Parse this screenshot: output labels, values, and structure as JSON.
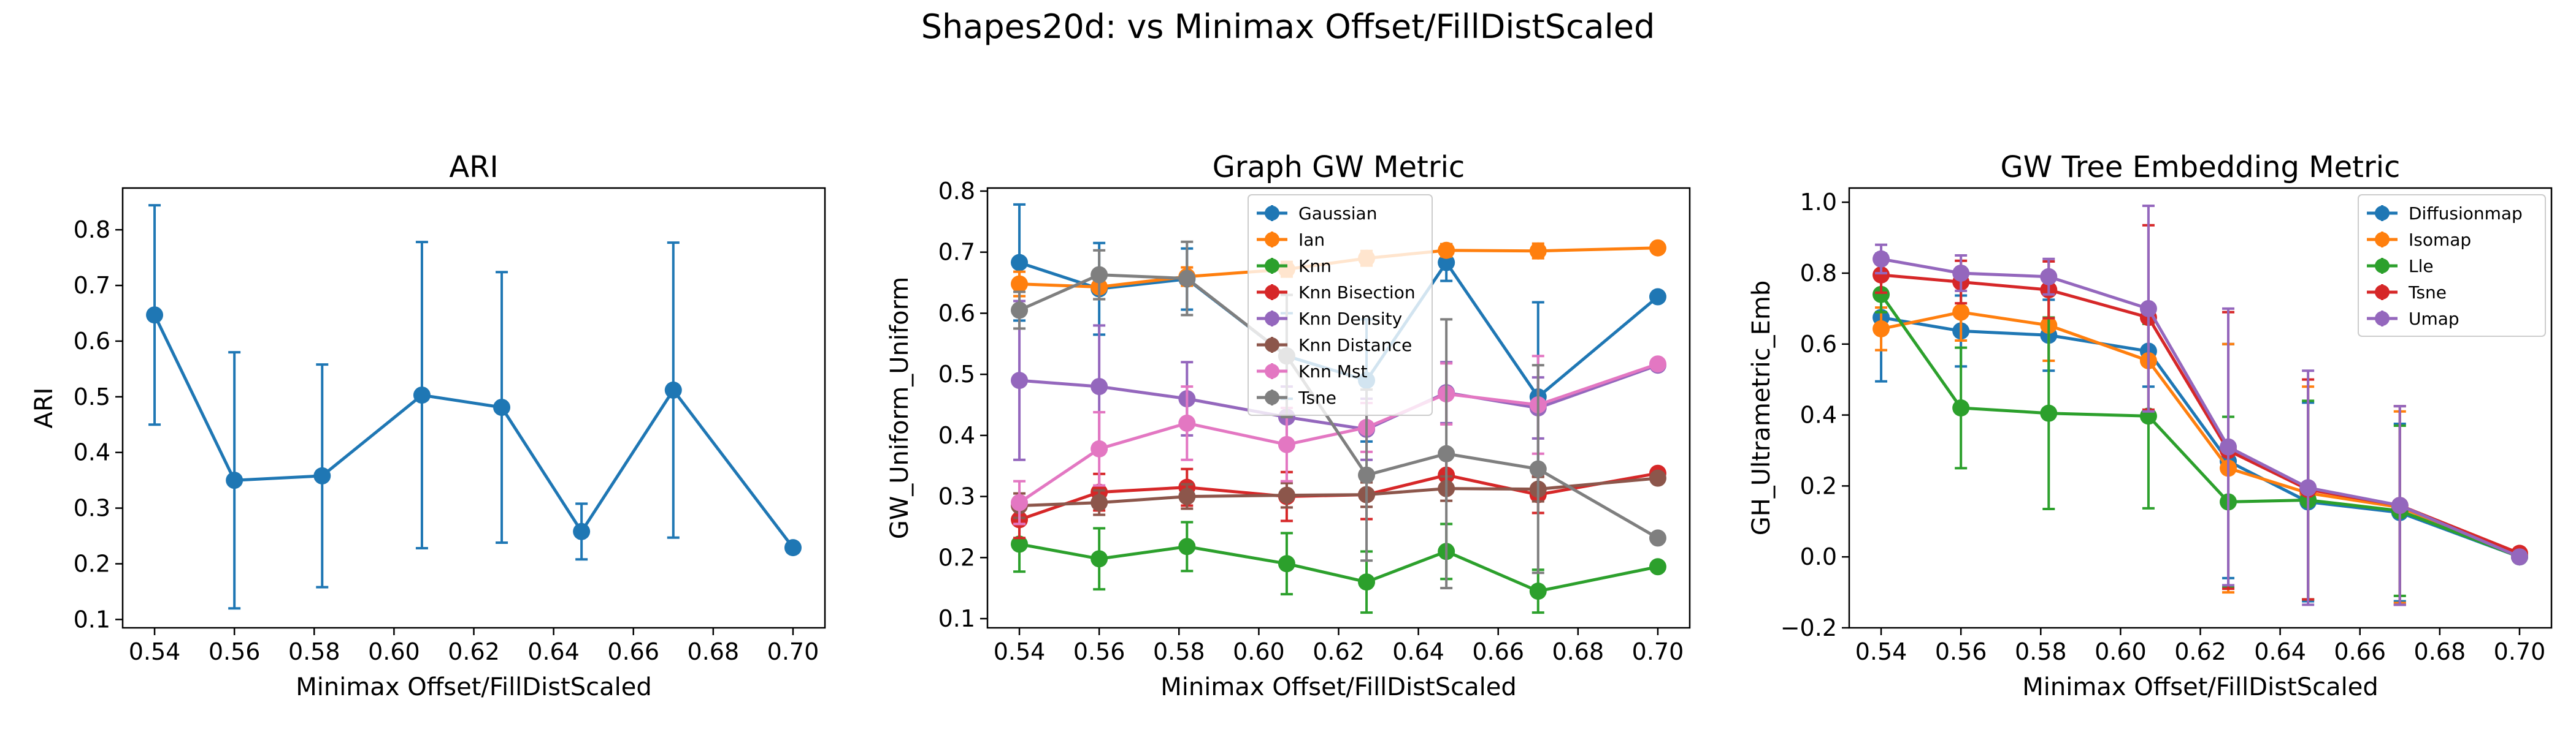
{
  "suptitle": "Shapes20d: vs Minimax Offset/FillDistScaled",
  "chart_data": [
    {
      "type": "line",
      "title": "ARI",
      "xlabel": "Minimax Offset/FillDistScaled",
      "ylabel": "ARI",
      "xlim": [
        0.532,
        0.708
      ],
      "ylim": [
        0.085,
        0.875
      ],
      "xticks": [
        "0.54",
        "0.56",
        "0.58",
        "0.60",
        "0.62",
        "0.64",
        "0.66",
        "0.68",
        "0.70"
      ],
      "yticks": [
        "0.1",
        "0.2",
        "0.3",
        "0.4",
        "0.5",
        "0.6",
        "0.7",
        "0.8"
      ],
      "x": [
        0.54,
        0.56,
        0.582,
        0.607,
        0.627,
        0.647,
        0.67,
        0.7
      ],
      "series": [
        {
          "color": "#1f77b4",
          "values": [
            0.647,
            0.35,
            0.358,
            0.503,
            0.481,
            0.258,
            0.512,
            0.229
          ],
          "errors": [
            0.197,
            0.23,
            0.2,
            0.275,
            0.243,
            0.05,
            0.265,
            0.0
          ]
        }
      ]
    },
    {
      "type": "line",
      "title": "Graph GW Metric",
      "xlabel": "Minimax Offset/FillDistScaled",
      "ylabel": "GW_Uniform_Uniform",
      "xlim": [
        0.532,
        0.708
      ],
      "ylim": [
        0.085,
        0.805
      ],
      "xticks": [
        "0.54",
        "0.56",
        "0.58",
        "0.60",
        "0.62",
        "0.64",
        "0.66",
        "0.68",
        "0.70"
      ],
      "yticks": [
        "0.1",
        "0.2",
        "0.3",
        "0.4",
        "0.5",
        "0.6",
        "0.7",
        "0.8"
      ],
      "legend_position": "upper center",
      "x": [
        0.54,
        0.56,
        0.582,
        0.607,
        0.627,
        0.647,
        0.67,
        0.7
      ],
      "series": [
        {
          "name": "Gaussian",
          "color": "#1f77b4",
          "values": [
            0.683,
            0.64,
            0.656,
            0.53,
            0.49,
            0.683,
            0.463,
            0.627
          ],
          "errors": [
            0.095,
            0.075,
            0.05,
            0.07,
            0.1,
            0.03,
            0.155,
            0.0
          ]
        },
        {
          "name": "Ian",
          "color": "#ff7f0e",
          "values": [
            0.648,
            0.643,
            0.66,
            0.672,
            0.69,
            0.703,
            0.702,
            0.707
          ],
          "errors": [
            0.02,
            0.02,
            0.015,
            0.012,
            0.012,
            0.01,
            0.012,
            0.0
          ]
        },
        {
          "name": "Knn",
          "color": "#2ca02c",
          "values": [
            0.222,
            0.198,
            0.218,
            0.19,
            0.16,
            0.21,
            0.145,
            0.185
          ],
          "errors": [
            0.045,
            0.05,
            0.04,
            0.05,
            0.05,
            0.045,
            0.035,
            0.0
          ]
        },
        {
          "name": "Knn Bisection",
          "color": "#d62728",
          "values": [
            0.262,
            0.307,
            0.315,
            0.3,
            0.303,
            0.335,
            0.303,
            0.338
          ],
          "errors": [
            0.03,
            0.03,
            0.03,
            0.04,
            0.04,
            0.03,
            0.03,
            0.0
          ]
        },
        {
          "name": "Knn Density",
          "color": "#9467bd",
          "values": [
            0.49,
            0.48,
            0.46,
            0.43,
            0.41,
            0.47,
            0.445,
            0.515
          ],
          "errors": [
            0.13,
            0.1,
            0.06,
            0.05,
            0.05,
            0.05,
            0.05,
            0.0
          ]
        },
        {
          "name": "Knn Distance",
          "color": "#8c564b",
          "values": [
            0.285,
            0.29,
            0.3,
            0.302,
            0.303,
            0.313,
            0.312,
            0.33
          ],
          "errors": [
            0.02,
            0.02,
            0.02,
            0.02,
            0.02,
            0.02,
            0.02,
            0.0
          ]
        },
        {
          "name": "Knn Mst",
          "color": "#e377c2",
          "values": [
            0.29,
            0.378,
            0.42,
            0.385,
            0.413,
            0.468,
            0.45,
            0.517
          ],
          "errors": [
            0.035,
            0.06,
            0.06,
            0.06,
            0.04,
            0.05,
            0.08,
            0.0
          ]
        },
        {
          "name": "Tsne",
          "color": "#7f7f7f",
          "values": [
            0.605,
            0.663,
            0.657,
            0.53,
            0.335,
            0.37,
            0.345,
            0.232
          ],
          "errors": [
            0.03,
            0.04,
            0.06,
            0.1,
            0.14,
            0.22,
            0.17,
            0.0
          ]
        }
      ]
    },
    {
      "type": "line",
      "title": "GW Tree Embedding Metric",
      "xlabel": "Minimax Offset/FillDistScaled",
      "ylabel": "GH_Ultrametric_Emb",
      "xlim": [
        0.532,
        0.708
      ],
      "ylim": [
        -0.2,
        1.04
      ],
      "xticks": [
        "0.54",
        "0.56",
        "0.58",
        "0.60",
        "0.62",
        "0.64",
        "0.66",
        "0.68",
        "0.70"
      ],
      "yticks": [
        "−0.2",
        "0.0",
        "0.2",
        "0.4",
        "0.6",
        "0.8",
        "1.0"
      ],
      "ytick_values": [
        -0.2,
        0.0,
        0.2,
        0.4,
        0.6,
        0.8,
        1.0
      ],
      "legend_position": "upper right",
      "x": [
        0.54,
        0.56,
        0.582,
        0.607,
        0.627,
        0.647,
        0.67,
        0.7
      ],
      "series": [
        {
          "name": "Diffusionmap",
          "color": "#1f77b4",
          "values": [
            0.675,
            0.637,
            0.625,
            0.58,
            0.27,
            0.155,
            0.125,
            0.0
          ],
          "errors": [
            0.18,
            0.1,
            0.1,
            0.1,
            0.33,
            0.28,
            0.25,
            0.0
          ]
        },
        {
          "name": "Isomap",
          "color": "#ff7f0e",
          "values": [
            0.643,
            0.69,
            0.653,
            0.553,
            0.25,
            0.18,
            0.14,
            0.005
          ],
          "errors": [
            0.06,
            0.08,
            0.1,
            0.15,
            0.35,
            0.3,
            0.27,
            0.0
          ]
        },
        {
          "name": "Lle",
          "color": "#2ca02c",
          "values": [
            0.74,
            0.42,
            0.405,
            0.397,
            0.155,
            0.16,
            0.13,
            0.0
          ],
          "errors": [
            0.05,
            0.17,
            0.27,
            0.26,
            0.24,
            0.28,
            0.24,
            0.0
          ]
        },
        {
          "name": "Tsne",
          "color": "#d62728",
          "values": [
            0.795,
            0.775,
            0.753,
            0.675,
            0.3,
            0.19,
            0.145,
            0.01
          ],
          "errors": [
            0.05,
            0.06,
            0.08,
            0.26,
            0.39,
            0.31,
            0.28,
            0.0
          ]
        },
        {
          "name": "Umap",
          "color": "#9467bd",
          "values": [
            0.84,
            0.8,
            0.79,
            0.7,
            0.31,
            0.195,
            0.145,
            0.0
          ],
          "errors": [
            0.04,
            0.05,
            0.05,
            0.29,
            0.39,
            0.33,
            0.28,
            0.0
          ]
        }
      ]
    }
  ]
}
